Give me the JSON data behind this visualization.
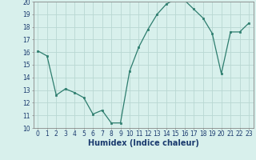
{
  "x": [
    0,
    1,
    2,
    3,
    4,
    5,
    6,
    7,
    8,
    9,
    10,
    11,
    12,
    13,
    14,
    15,
    16,
    17,
    18,
    19,
    20,
    21,
    22,
    23
  ],
  "y": [
    16.1,
    15.7,
    12.6,
    13.1,
    12.8,
    12.4,
    11.1,
    11.4,
    10.4,
    10.4,
    14.5,
    16.4,
    17.8,
    19.0,
    19.8,
    20.2,
    20.1,
    19.4,
    18.7,
    17.5,
    14.3,
    17.6,
    17.6,
    18.3
  ],
  "xlabel": "Humidex (Indice chaleur)",
  "xlim": [
    -0.5,
    23.5
  ],
  "ylim": [
    10,
    20
  ],
  "yticks": [
    10,
    11,
    12,
    13,
    14,
    15,
    16,
    17,
    18,
    19,
    20
  ],
  "xticks": [
    0,
    1,
    2,
    3,
    4,
    5,
    6,
    7,
    8,
    9,
    10,
    11,
    12,
    13,
    14,
    15,
    16,
    17,
    18,
    19,
    20,
    21,
    22,
    23
  ],
  "line_color": "#2d7d6e",
  "marker": "s",
  "marker_size": 2.0,
  "bg_color": "#d8f0ec",
  "grid_color": "#b8d8d2",
  "xlabel_fontsize": 7,
  "xlabel_color": "#1a3a6e",
  "tick_fontsize": 5.5,
  "tick_color": "#1a3a6e",
  "spine_color": "#888888"
}
